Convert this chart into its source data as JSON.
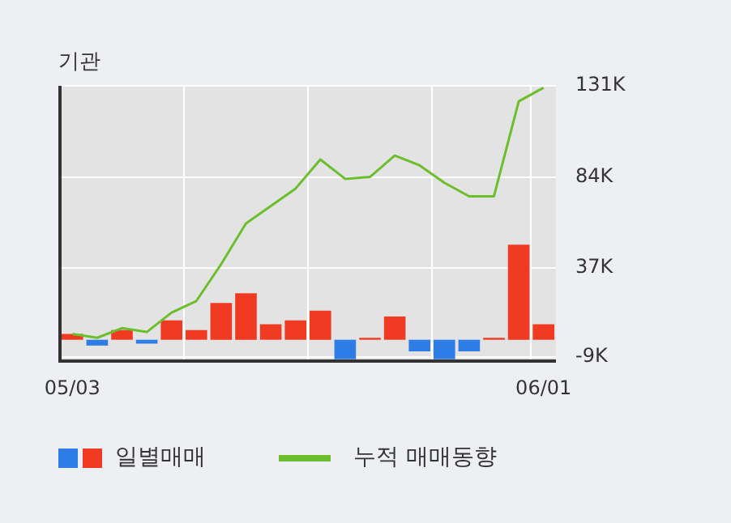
{
  "chart_data": {
    "type": "bar",
    "title": "기관",
    "categories": [
      "05/03",
      null,
      null,
      null,
      null,
      null,
      null,
      null,
      null,
      null,
      null,
      null,
      null,
      null,
      null,
      null,
      null,
      null,
      null,
      "06/01"
    ],
    "series": [
      {
        "name": "일별매매",
        "colors": [
          "#f03a22",
          "#2e7de6",
          "#f03a22",
          "#2e7de6",
          "#f03a22",
          "#f03a22",
          "#f03a22",
          "#f03a22",
          "#f03a22",
          "#f03a22",
          "#f03a22",
          "#2e7de6",
          "#f03a22",
          "#f03a22",
          "#2e7de6",
          "#2e7de6",
          "#2e7de6",
          "#f03a22",
          "#f03a22",
          "#f03a22"
        ],
        "values": [
          3,
          -3,
          5,
          -2,
          10,
          5,
          19,
          24,
          8,
          10,
          15,
          -10,
          1,
          12,
          -6,
          -10,
          -6,
          1,
          49,
          8
        ]
      },
      {
        "name": "누적 매매동향",
        "type": "line",
        "color": "#6cbf2c",
        "values": [
          3,
          1,
          6,
          4,
          14,
          20,
          39,
          60,
          69,
          78,
          93,
          83,
          84,
          95,
          90,
          81,
          74,
          74,
          123,
          130
        ]
      }
    ],
    "ylim": [
      -11,
      131
    ],
    "yticks": [
      {
        "value": -9,
        "label": "-9K"
      },
      {
        "value": 37,
        "label": "37K"
      },
      {
        "value": 84,
        "label": "84K"
      },
      {
        "value": 131,
        "label": "131K"
      }
    ],
    "grid": true,
    "legend": "bottom",
    "marker": "none"
  }
}
